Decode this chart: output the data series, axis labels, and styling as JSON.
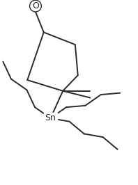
{
  "bg_color": "#ffffff",
  "line_color": "#2a2a2a",
  "line_width": 1.4,
  "figsize": [
    1.98,
    2.66
  ],
  "dpi": 100,
  "sn_label": "Sn",
  "o_label": "O"
}
